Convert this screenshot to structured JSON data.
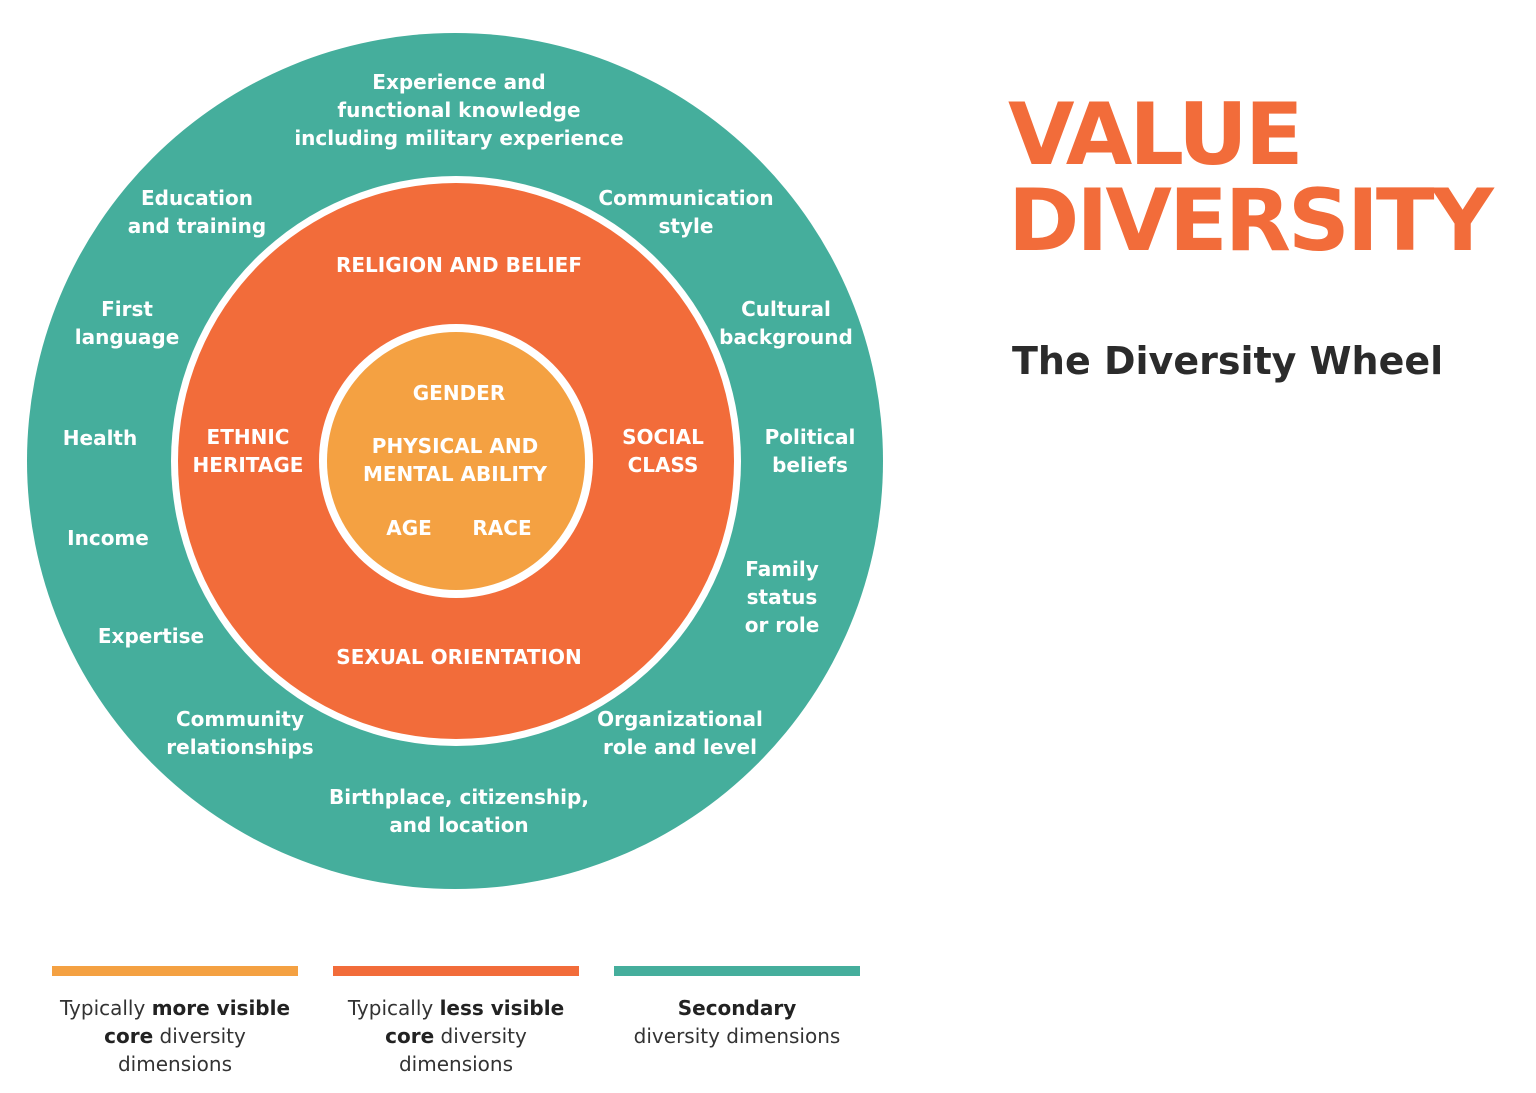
{
  "colors": {
    "secondary": "#45AE9C",
    "less_visible_core": "#F26C3A",
    "more_visible_core": "#F4A142",
    "title": "#F26C3A"
  },
  "title": "VALUE\nDIVERSITY",
  "subtitle": "The Diversity Wheel",
  "wheel": {
    "inner_labels": {
      "gender": "GENDER",
      "physical": "PHYSICAL AND\nMENTAL ABILITY",
      "age": "AGE",
      "race": "RACE"
    },
    "middle_labels": {
      "religion": "RELIGION AND BELIEF",
      "ethnic": "ETHNIC\nHERITAGE",
      "social": "SOCIAL\nCLASS",
      "sexual": "SEXUAL ORIENTATION"
    },
    "outer_labels": {
      "experience": "Experience and\nfunctional knowledge\nincluding military experience",
      "communication": "Communication\nstyle",
      "cultural": "Cultural\nbackground",
      "political": "Political\nbeliefs",
      "family": "Family\nstatus\nor role",
      "organizational": "Organizational\nrole and level",
      "birthplace": "Birthplace, citizenship,\nand location",
      "community": "Community\nrelationships",
      "expertise": "Expertise",
      "income": "Income",
      "health": "Health",
      "language": "First\nlanguage",
      "education": "Education\nand training"
    }
  },
  "legend": [
    {
      "pre": "Typically ",
      "bold1": "more visible",
      "mid": "",
      "bold2": "core",
      "post": " diversity",
      "last": "dimensions"
    },
    {
      "pre": "Typically ",
      "bold1": "less visible",
      "mid": "",
      "bold2": "core",
      "post": " diversity",
      "last": "dimensions"
    },
    {
      "pre": "",
      "bold1": "Secondary",
      "mid": "",
      "bold2": "",
      "post": "diversity dimensions",
      "last": ""
    }
  ]
}
